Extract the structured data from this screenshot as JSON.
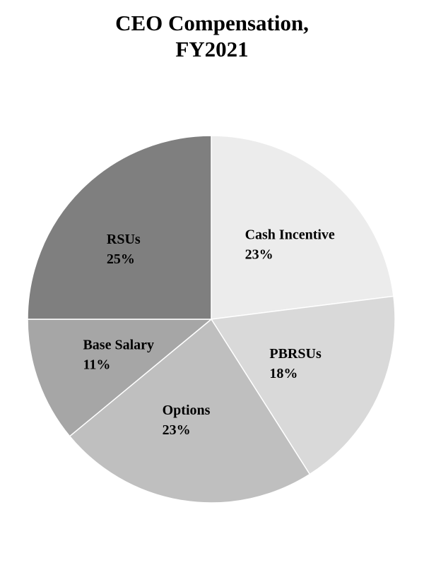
{
  "chart_data": {
    "type": "pie",
    "title_lines": [
      "CEO Compensation,",
      "FY2021"
    ],
    "slices": [
      {
        "label": "Cash Incentive",
        "pct_label": "23%",
        "value": 23,
        "color": "#ececec"
      },
      {
        "label": "PBRSUs",
        "pct_label": "18%",
        "value": 18,
        "color": "#d9d9d9"
      },
      {
        "label": "Options",
        "pct_label": "23%",
        "value": 23,
        "color": "#bfbfbf"
      },
      {
        "label": "Base Salary",
        "pct_label": "11%",
        "value": 11,
        "color": "#a6a6a6"
      },
      {
        "label": "RSUs",
        "pct_label": "25%",
        "value": 25,
        "color": "#7f7f7f"
      }
    ],
    "start_angle_deg": 0,
    "direction": "clockwise",
    "legend": "none",
    "label_position": "inside"
  }
}
